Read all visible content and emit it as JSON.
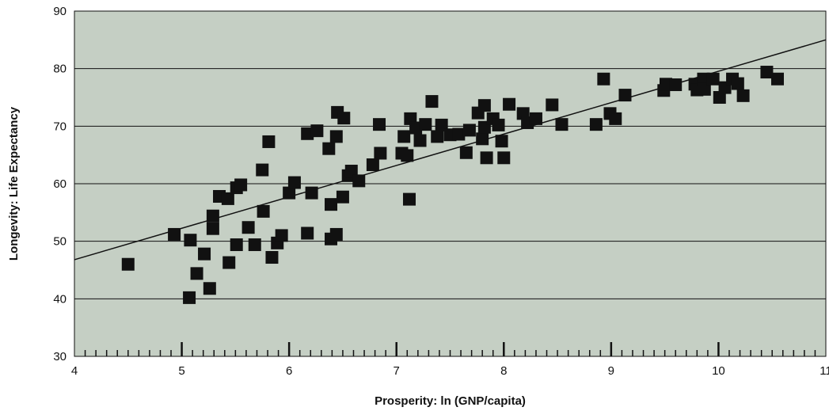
{
  "chart_data": {
    "type": "scatter",
    "title": "",
    "xlabel": "Prosperity: ln (GNP/capita)",
    "ylabel": "Longevity: Life Expectancy",
    "xlim": [
      4,
      11
    ],
    "ylim": [
      30,
      90
    ],
    "x_ticks": [
      "4",
      "5",
      "6",
      "7",
      "8",
      "9",
      "10",
      "11"
    ],
    "y_ticks": [
      "30",
      "40",
      "50",
      "60",
      "70",
      "80",
      "90"
    ],
    "grid": "horizontal",
    "background_color": "#c5cfc4",
    "marker_color": "#111111",
    "trendline": {
      "x": [
        4,
        11
      ],
      "y": [
        46.8,
        85.0
      ]
    },
    "points": [
      [
        4.5,
        46
      ],
      [
        4.93,
        51.2
      ],
      [
        5.07,
        40.2
      ],
      [
        5.08,
        50.2
      ],
      [
        5.14,
        44.4
      ],
      [
        5.21,
        47.8
      ],
      [
        5.26,
        41.8
      ],
      [
        5.29,
        54.4
      ],
      [
        5.29,
        52.2
      ],
      [
        5.35,
        57.8
      ],
      [
        5.43,
        57.4
      ],
      [
        5.44,
        46.3
      ],
      [
        5.51,
        49.4
      ],
      [
        5.51,
        59.3
      ],
      [
        5.55,
        59.8
      ],
      [
        5.62,
        52.4
      ],
      [
        5.68,
        49.4
      ],
      [
        5.75,
        62.4
      ],
      [
        5.76,
        55.2
      ],
      [
        5.81,
        67.3
      ],
      [
        5.84,
        47.2
      ],
      [
        5.89,
        49.7
      ],
      [
        5.93,
        51
      ],
      [
        6.0,
        58.4
      ],
      [
        6.05,
        60.2
      ],
      [
        6.17,
        51.4
      ],
      [
        6.17,
        68.7
      ],
      [
        6.21,
        58.4
      ],
      [
        6.26,
        69.2
      ],
      [
        6.37,
        66.1
      ],
      [
        6.39,
        50.4
      ],
      [
        6.39,
        56.4
      ],
      [
        6.44,
        51.2
      ],
      [
        6.44,
        68.2
      ],
      [
        6.45,
        72.4
      ],
      [
        6.5,
        57.7
      ],
      [
        6.51,
        71.4
      ],
      [
        6.55,
        61.4
      ],
      [
        6.58,
        62.2
      ],
      [
        6.65,
        60.5
      ],
      [
        6.78,
        63.3
      ],
      [
        6.84,
        70.3
      ],
      [
        6.85,
        65.3
      ],
      [
        7.05,
        65.3
      ],
      [
        7.07,
        68.2
      ],
      [
        7.1,
        64.9
      ],
      [
        7.12,
        57.3
      ],
      [
        7.13,
        71.3
      ],
      [
        7.18,
        69.7
      ],
      [
        7.22,
        67.5
      ],
      [
        7.27,
        70.3
      ],
      [
        7.33,
        74.3
      ],
      [
        7.38,
        68.2
      ],
      [
        7.42,
        70.2
      ],
      [
        7.5,
        68.5
      ],
      [
        7.58,
        68.6
      ],
      [
        7.65,
        65.4
      ],
      [
        7.68,
        69.3
      ],
      [
        7.76,
        72.3
      ],
      [
        7.8,
        67.8
      ],
      [
        7.82,
        69.8
      ],
      [
        7.82,
        73.6
      ],
      [
        7.84,
        64.5
      ],
      [
        7.9,
        71.3
      ],
      [
        7.95,
        70.2
      ],
      [
        7.98,
        67.4
      ],
      [
        8.0,
        64.5
      ],
      [
        8.05,
        73.8
      ],
      [
        8.18,
        72.2
      ],
      [
        8.22,
        70.6
      ],
      [
        8.3,
        71.3
      ],
      [
        8.45,
        73.7
      ],
      [
        8.54,
        70.3
      ],
      [
        8.86,
        70.3
      ],
      [
        8.93,
        78.2
      ],
      [
        8.99,
        72.2
      ],
      [
        9.04,
        71.3
      ],
      [
        9.13,
        75.4
      ],
      [
        9.49,
        76.2
      ],
      [
        9.51,
        77.3
      ],
      [
        9.6,
        77.2
      ],
      [
        9.78,
        77.3
      ],
      [
        9.8,
        76.3
      ],
      [
        9.86,
        78.2
      ],
      [
        9.87,
        76.4
      ],
      [
        9.95,
        78.2
      ],
      [
        10.01,
        75
      ],
      [
        10.06,
        76.7
      ],
      [
        10.13,
        78.2
      ],
      [
        10.18,
        77.4
      ],
      [
        10.23,
        75.3
      ],
      [
        10.45,
        79.4
      ],
      [
        10.55,
        78.2
      ]
    ]
  }
}
